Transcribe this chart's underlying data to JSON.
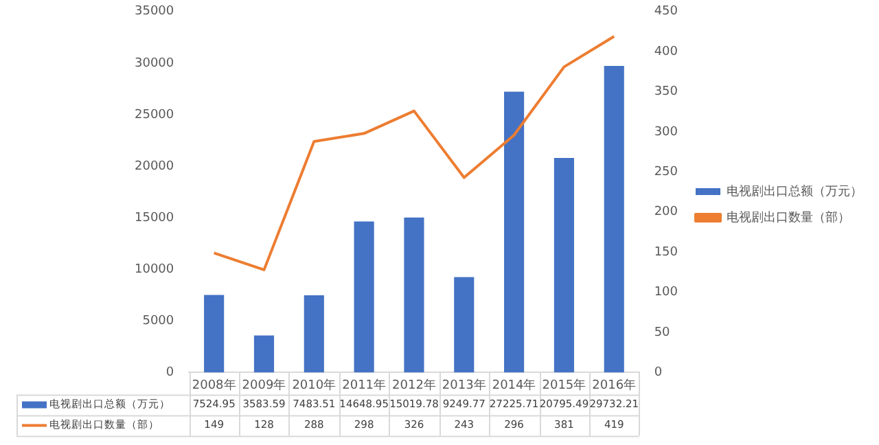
{
  "chart_data": {
    "type": "bar",
    "categories": [
      "2008年",
      "2009年",
      "2010年",
      "2011年",
      "2012年",
      "2013年",
      "2014年",
      "2015年",
      "2016年"
    ],
    "series": [
      {
        "name": "电视剧出口总额（万元）",
        "type": "bar",
        "color": "#4472c4",
        "values": [
          7524.95,
          3583.59,
          7483.51,
          14648.95,
          15019.78,
          9249.77,
          27225.71,
          20795.49,
          29732.21
        ]
      },
      {
        "name": "电视剧出口数量（部）",
        "type": "line",
        "axis": "y2",
        "color": "#ed7d31",
        "values": [
          149,
          128,
          288,
          298,
          326,
          243,
          296,
          381,
          419
        ]
      }
    ],
    "ylim": [
      0,
      35000
    ],
    "yticks": [
      0,
      5000,
      10000,
      15000,
      20000,
      25000,
      30000,
      35000
    ],
    "y2lim": [
      0,
      450
    ],
    "y2ticks": [
      0,
      50,
      100,
      150,
      200,
      250,
      300,
      350,
      400,
      450
    ],
    "grid": false,
    "legend": "right",
    "marker": "none",
    "data_labels": true
  }
}
